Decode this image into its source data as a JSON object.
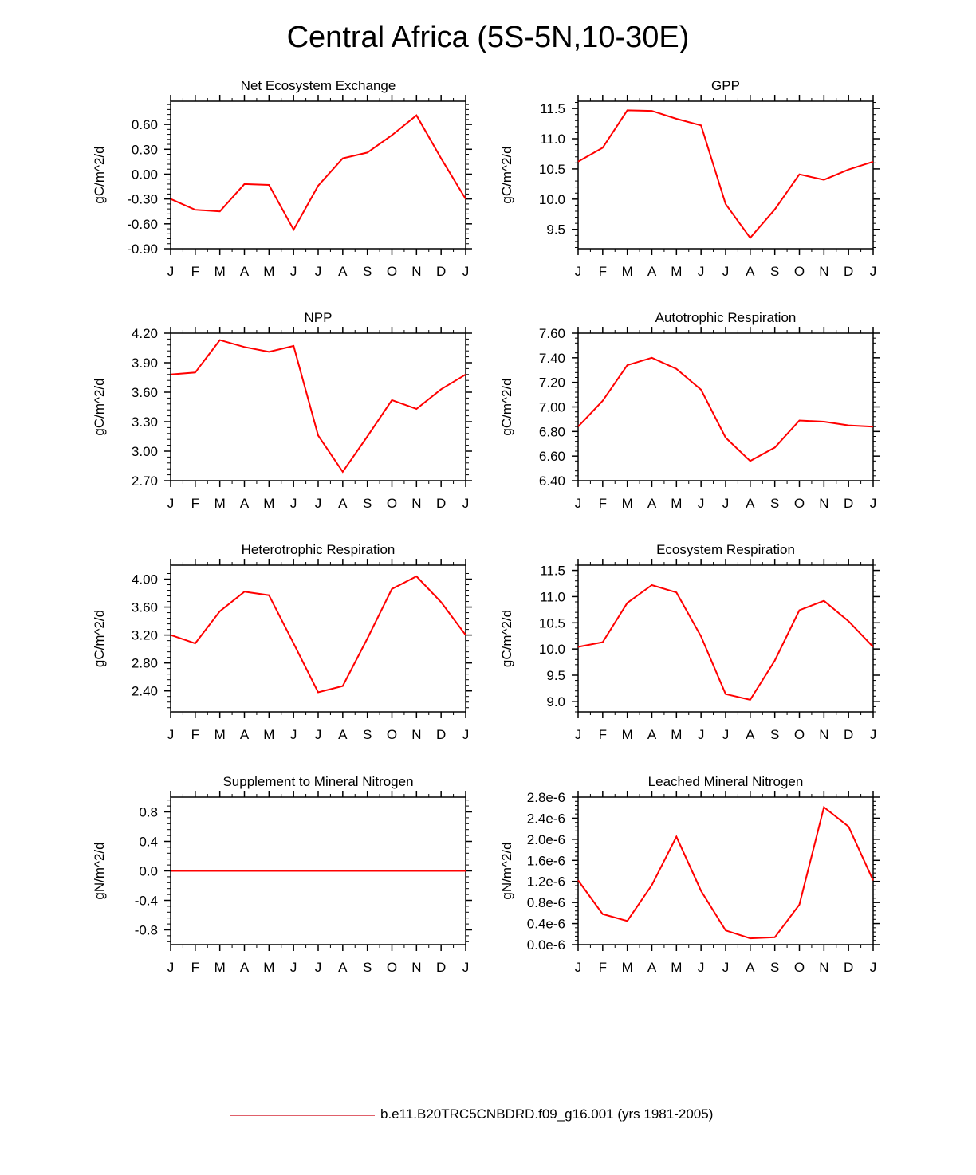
{
  "title": "Central Africa (5S-5N,10-30E)",
  "line_color": "#ff0000",
  "legend_color": "#e0606a",
  "legend": {
    "label": "b.e11.B20TRC5CNBDRD.f09_g16.001 (yrs 1981-2005)"
  },
  "chart_data": [
    {
      "type": "line",
      "title": "Net Ecosystem Exchange",
      "ylabel": "gC/m^2/d",
      "categories": [
        "J",
        "F",
        "M",
        "A",
        "M",
        "J",
        "J",
        "A",
        "S",
        "O",
        "N",
        "D",
        "J"
      ],
      "ylim": [
        -0.9,
        0.88
      ],
      "yticks": [
        -0.9,
        -0.6,
        -0.3,
        0.0,
        0.3,
        0.6
      ],
      "ytick_labels": [
        "-0.90",
        "-0.60",
        "-0.30",
        "0.00",
        "0.30",
        "0.60"
      ],
      "series": [
        {
          "values": [
            -0.3,
            -0.43,
            -0.45,
            -0.12,
            -0.13,
            -0.67,
            -0.14,
            0.19,
            0.26,
            0.47,
            0.71,
            0.19,
            -0.3
          ]
        }
      ]
    },
    {
      "type": "line",
      "title": "GPP",
      "ylabel": "gC/m^2/d",
      "categories": [
        "J",
        "F",
        "M",
        "A",
        "M",
        "J",
        "J",
        "A",
        "S",
        "O",
        "N",
        "D",
        "J"
      ],
      "ylim": [
        9.18,
        11.62
      ],
      "yticks": [
        9.5,
        10.0,
        10.5,
        11.0,
        11.5
      ],
      "ytick_labels": [
        "9.5",
        "10.0",
        "10.5",
        "11.0",
        "11.5"
      ],
      "series": [
        {
          "values": [
            10.62,
            10.85,
            11.47,
            11.46,
            11.33,
            11.22,
            9.92,
            9.36,
            9.83,
            10.41,
            10.32,
            10.49,
            10.62
          ]
        }
      ]
    },
    {
      "type": "line",
      "title": "NPP",
      "ylabel": "gC/m^2/d",
      "categories": [
        "J",
        "F",
        "M",
        "A",
        "M",
        "J",
        "J",
        "A",
        "S",
        "O",
        "N",
        "D",
        "J"
      ],
      "ylim": [
        2.7,
        4.2
      ],
      "yticks": [
        2.7,
        3.0,
        3.3,
        3.6,
        3.9,
        4.2
      ],
      "ytick_labels": [
        "2.70",
        "3.00",
        "3.30",
        "3.60",
        "3.90",
        "4.20"
      ],
      "series": [
        {
          "values": [
            3.78,
            3.8,
            4.13,
            4.06,
            4.01,
            4.07,
            3.16,
            2.79,
            3.15,
            3.52,
            3.43,
            3.63,
            3.78
          ]
        }
      ]
    },
    {
      "type": "line",
      "title": "Autotrophic Respiration",
      "ylabel": "gC/m^2/d",
      "categories": [
        "J",
        "F",
        "M",
        "A",
        "M",
        "J",
        "J",
        "A",
        "S",
        "O",
        "N",
        "D",
        "J"
      ],
      "ylim": [
        6.4,
        7.6
      ],
      "yticks": [
        6.4,
        6.6,
        6.8,
        7.0,
        7.2,
        7.4,
        7.6
      ],
      "ytick_labels": [
        "6.40",
        "6.60",
        "6.80",
        "7.00",
        "7.20",
        "7.40",
        "7.60"
      ],
      "series": [
        {
          "values": [
            6.84,
            7.05,
            7.34,
            7.4,
            7.31,
            7.14,
            6.75,
            6.56,
            6.67,
            6.89,
            6.88,
            6.85,
            6.84
          ]
        }
      ]
    },
    {
      "type": "line",
      "title": "Heterotrophic Respiration",
      "ylabel": "gC/m^2/d",
      "categories": [
        "J",
        "F",
        "M",
        "A",
        "M",
        "J",
        "J",
        "A",
        "S",
        "O",
        "N",
        "D",
        "J"
      ],
      "ylim": [
        2.1,
        4.2
      ],
      "yticks": [
        2.4,
        2.8,
        3.2,
        3.6,
        4.0
      ],
      "ytick_labels": [
        "2.40",
        "2.80",
        "3.20",
        "3.60",
        "4.00"
      ],
      "series": [
        {
          "values": [
            3.2,
            3.08,
            3.54,
            3.82,
            3.77,
            3.08,
            2.38,
            2.47,
            3.15,
            3.86,
            4.04,
            3.67,
            3.2
          ]
        }
      ]
    },
    {
      "type": "line",
      "title": "Ecosystem Respiration",
      "ylabel": "gC/m^2/d",
      "categories": [
        "J",
        "F",
        "M",
        "A",
        "M",
        "J",
        "J",
        "A",
        "S",
        "O",
        "N",
        "D",
        "J"
      ],
      "ylim": [
        8.8,
        11.6
      ],
      "yticks": [
        9.0,
        9.5,
        10.0,
        10.5,
        11.0,
        11.5
      ],
      "ytick_labels": [
        "9.0",
        "9.5",
        "10.0",
        "10.5",
        "11.0",
        "11.5"
      ],
      "series": [
        {
          "values": [
            10.04,
            10.13,
            10.88,
            11.22,
            11.08,
            10.24,
            9.14,
            9.03,
            9.78,
            10.74,
            10.92,
            10.53,
            10.04
          ]
        }
      ]
    },
    {
      "type": "line",
      "title": "Supplement to Mineral Nitrogen",
      "ylabel": "gN/m^2/d",
      "categories": [
        "J",
        "F",
        "M",
        "A",
        "M",
        "J",
        "J",
        "A",
        "S",
        "O",
        "N",
        "D",
        "J"
      ],
      "ylim": [
        -1.0,
        1.0
      ],
      "yticks": [
        -0.8,
        -0.4,
        0.0,
        0.4,
        0.8
      ],
      "ytick_labels": [
        "-0.8",
        "-0.4",
        "0.0",
        "0.4",
        "0.8"
      ],
      "series": [
        {
          "values": [
            0,
            0,
            0,
            0,
            0,
            0,
            0,
            0,
            0,
            0,
            0,
            0,
            0
          ]
        }
      ]
    },
    {
      "type": "line",
      "title": "Leached Mineral Nitrogen",
      "ylabel": "gN/m^2/d",
      "categories": [
        "J",
        "F",
        "M",
        "A",
        "M",
        "J",
        "J",
        "A",
        "S",
        "O",
        "N",
        "D",
        "J"
      ],
      "ylim": [
        0.0,
        2.8
      ],
      "yticks": [
        0.0,
        0.4,
        0.8,
        1.2,
        1.6,
        2.0,
        2.4,
        2.8
      ],
      "ytick_labels": [
        "0.0e-6",
        "0.4e-6",
        "0.8e-6",
        "1.2e-6",
        "1.6e-6",
        "2.0e-6",
        "2.4e-6",
        "2.8e-6"
      ],
      "y_scale_note": "values in units of 1e-6",
      "series": [
        {
          "values": [
            1.22,
            0.58,
            0.45,
            1.13,
            2.05,
            1.02,
            0.27,
            0.12,
            0.14,
            0.76,
            2.61,
            2.24,
            1.22
          ]
        }
      ]
    }
  ]
}
